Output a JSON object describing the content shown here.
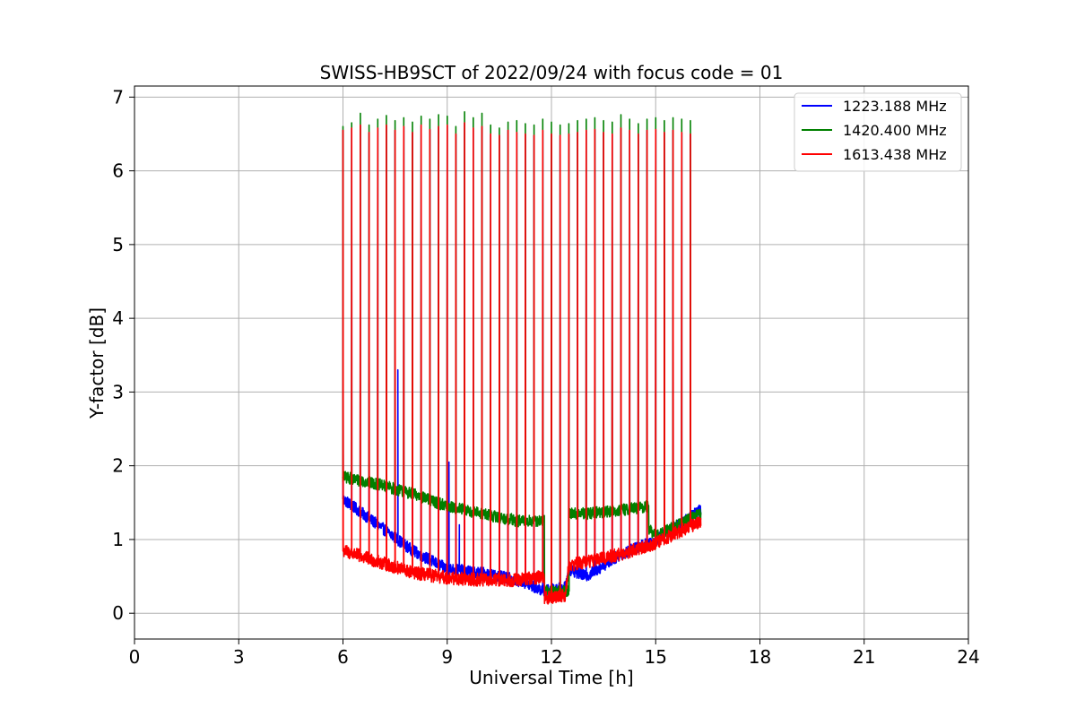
{
  "chart_data": {
    "type": "line",
    "title": "SWISS-HB9SCT of 2022/09/24 with focus code = 01",
    "xlabel": "Universal Time [h]",
    "ylabel": "Y-factor [dB]",
    "xlim": [
      0,
      24
    ],
    "ylim": [
      -0.35,
      7.15
    ],
    "xticks": [
      0,
      3,
      6,
      9,
      12,
      15,
      18,
      21,
      24
    ],
    "yticks": [
      0,
      1,
      2,
      3,
      4,
      5,
      6,
      7
    ],
    "grid": true,
    "legend_position": "top-right",
    "calibration_spikes": {
      "start_h": 6.0,
      "end_h": 16.0,
      "interval_h": 0.25,
      "peak_values_1420": [
        6.6,
        6.65,
        6.78,
        6.62,
        6.7,
        6.75,
        6.68,
        6.72,
        6.66,
        6.74,
        6.7,
        6.76,
        6.74,
        6.6,
        6.8,
        6.72,
        6.78,
        6.62,
        6.58,
        6.66,
        6.68,
        6.64,
        6.62,
        6.7,
        6.66,
        6.62,
        6.64,
        6.68,
        6.7,
        6.72,
        6.68,
        6.66,
        6.76,
        6.7,
        6.64,
        6.7,
        6.72,
        6.68,
        6.72,
        6.7,
        6.68
      ],
      "peak_values_1613": [
        6.55,
        6.58,
        6.62,
        6.52,
        6.58,
        6.62,
        6.55,
        6.6,
        6.52,
        6.62,
        6.56,
        6.6,
        6.62,
        6.5,
        6.65,
        6.58,
        6.6,
        6.5,
        6.48,
        6.55,
        6.52,
        6.5,
        6.48,
        6.55,
        6.5,
        6.48,
        6.5,
        6.52,
        6.55,
        6.56,
        6.52,
        6.5,
        6.58,
        6.55,
        6.5,
        6.55,
        6.56,
        6.52,
        6.55,
        6.52,
        6.5
      ]
    },
    "series": [
      {
        "name": "1223.188 MHz",
        "color": "#0000ff",
        "noise": 0.08,
        "baseline": [
          [
            6.0,
            1.55
          ],
          [
            7.0,
            1.2
          ],
          [
            8.0,
            0.85
          ],
          [
            9.0,
            0.6
          ],
          [
            10.0,
            0.55
          ],
          [
            11.0,
            0.45
          ],
          [
            11.8,
            0.3
          ],
          [
            12.4,
            0.35
          ],
          [
            12.5,
            0.6
          ],
          [
            13.0,
            0.5
          ],
          [
            14.0,
            0.8
          ],
          [
            15.0,
            1.0
          ],
          [
            16.3,
            1.4
          ]
        ],
        "spikes": [
          [
            7.58,
            3.3
          ],
          [
            9.05,
            2.05
          ],
          [
            9.35,
            1.2
          ]
        ]
      },
      {
        "name": "1420.400 MHz",
        "color": "#008000",
        "noise": 0.08,
        "baseline": [
          [
            6.0,
            1.85
          ],
          [
            7.0,
            1.75
          ],
          [
            8.0,
            1.62
          ],
          [
            9.0,
            1.45
          ],
          [
            10.0,
            1.35
          ],
          [
            11.0,
            1.25
          ],
          [
            11.8,
            1.25
          ],
          [
            11.8,
            0.3
          ],
          [
            12.5,
            0.3
          ],
          [
            12.5,
            1.35
          ],
          [
            13.0,
            1.35
          ],
          [
            14.0,
            1.4
          ],
          [
            14.8,
            1.45
          ],
          [
            14.8,
            1.15
          ],
          [
            15.0,
            1.05
          ],
          [
            16.3,
            1.35
          ]
        ],
        "spikes": [
          [
            10.85,
            1.35
          ]
        ]
      },
      {
        "name": "1613.438 MHz",
        "color": "#ff0000",
        "noise": 0.09,
        "baseline": [
          [
            6.0,
            0.85
          ],
          [
            7.0,
            0.7
          ],
          [
            8.0,
            0.55
          ],
          [
            9.0,
            0.48
          ],
          [
            10.0,
            0.45
          ],
          [
            11.0,
            0.45
          ],
          [
            11.8,
            0.5
          ],
          [
            11.8,
            0.2
          ],
          [
            12.4,
            0.25
          ],
          [
            12.5,
            0.65
          ],
          [
            13.0,
            0.7
          ],
          [
            14.0,
            0.8
          ],
          [
            15.0,
            0.95
          ],
          [
            16.3,
            1.25
          ]
        ],
        "spikes": []
      }
    ]
  }
}
